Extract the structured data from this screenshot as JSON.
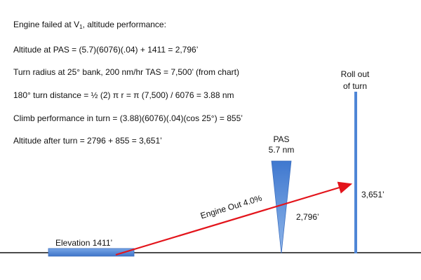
{
  "notes": {
    "line1_prefix": "Engine failed at V",
    "line1_sub": "1",
    "line1_suffix": ", altitude performance:",
    "line2": "Altitude at PAS = (5.7)(6076)(.04) + 1411 = 2,796’",
    "line3": "Turn radius at 25° bank, 200 nm/hr TAS = 7,500’ (from chart)",
    "line4": "180° turn distance = ½ (2) π r = π (7,500) / 6076 = 3.88 nm",
    "line5": "Climb performance in turn = (3.88)(6076)(.04)(cos 25°) = 855’",
    "line6": "Altitude after turn = 2796 + 855 = 3,651’"
  },
  "diagram": {
    "rollout_line1": "Roll out",
    "rollout_line2": "of turn",
    "pas_line1": "PAS",
    "pas_line2": "5.7 nm",
    "altitude_pas": "2,796’",
    "altitude_rollout": "3,651’",
    "engine_out": "Engine Out 4.0%",
    "elevation": "Elevation 1411’"
  },
  "colors": {
    "shape_blue": "#4f86d6",
    "arrow_red": "#e3141b",
    "ground": "#111111"
  }
}
